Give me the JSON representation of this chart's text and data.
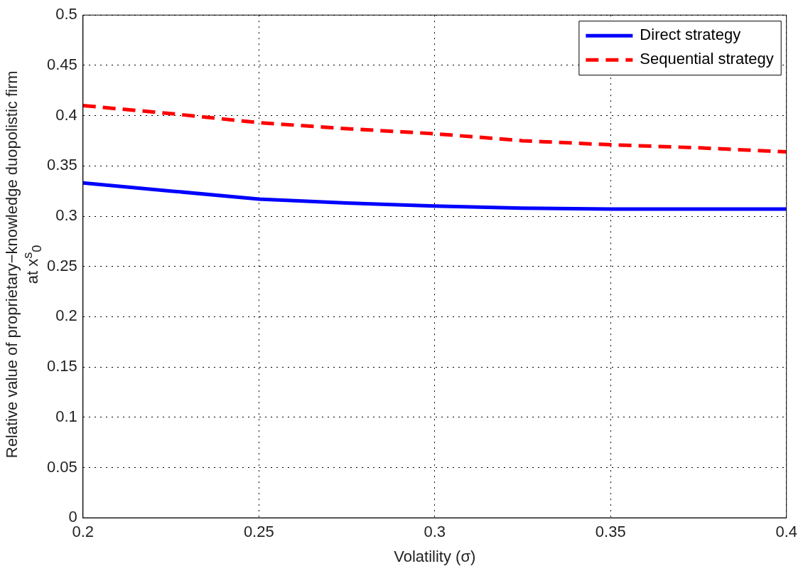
{
  "chart_data": {
    "type": "line",
    "xlabel": "Volatility (σ)",
    "ylabel": "Relative value of proprietary−knowledge duopolistic firm\nat x$^{s}$$_{0}$",
    "x": [
      0.2,
      0.225,
      0.25,
      0.275,
      0.3,
      0.325,
      0.35,
      0.375,
      0.4
    ],
    "series": [
      {
        "name": "Direct strategy",
        "color": "#0000ff",
        "line_style": "solid",
        "values": [
          0.333,
          0.325,
          0.317,
          0.313,
          0.31,
          0.308,
          0.307,
          0.307,
          0.307
        ]
      },
      {
        "name": "Sequential strategy",
        "color": "#ff0000",
        "line_style": "dashed",
        "values": [
          0.41,
          0.402,
          0.393,
          0.387,
          0.382,
          0.375,
          0.371,
          0.368,
          0.364
        ]
      }
    ],
    "xlim": [
      0.2,
      0.4
    ],
    "xticks": [
      0.2,
      0.25,
      0.3,
      0.35,
      0.4
    ],
    "ylim": [
      0,
      0.5
    ],
    "yticks": [
      0,
      0.05,
      0.1,
      0.15,
      0.2,
      0.25,
      0.3,
      0.35,
      0.4,
      0.45,
      0.5
    ],
    "grid": true,
    "legend": "top right",
    "marker": "none"
  }
}
